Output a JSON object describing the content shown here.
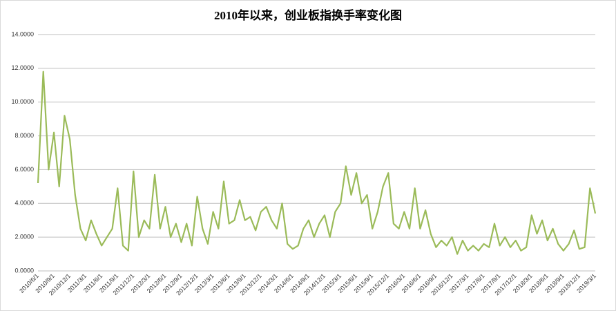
{
  "chart_data": {
    "type": "line",
    "title": "2010年以来，创业板指换手率变化图",
    "categories": [
      "2010/6/1",
      null,
      null,
      "2010/9/1",
      null,
      null,
      "2010/12/1",
      null,
      null,
      "2011/3/1",
      null,
      null,
      "2011/6/1",
      null,
      null,
      "2011/9/1",
      null,
      null,
      "2011/12/1",
      null,
      null,
      "2012/3/1",
      null,
      null,
      "2012/6/1",
      null,
      null,
      "2012/9/1",
      null,
      null,
      "2012/12/1",
      null,
      null,
      "2013/3/1",
      null,
      null,
      "2013/6/1",
      null,
      null,
      "2013/9/1",
      null,
      null,
      "2013/12/1",
      null,
      null,
      "2014/3/1",
      null,
      null,
      "2014/6/1",
      null,
      null,
      "2014/9/1",
      null,
      null,
      "2014/12/1",
      null,
      null,
      "2015/3/1",
      null,
      null,
      "2015/6/1",
      null,
      null,
      "2015/9/1",
      null,
      null,
      "2015/12/1",
      null,
      null,
      "2016/3/1",
      null,
      null,
      "2016/6/1",
      null,
      null,
      "2016/9/1",
      null,
      null,
      "2016/12/1",
      null,
      null,
      "2017/3/1",
      null,
      null,
      "2017/6/1",
      null,
      null,
      "2017/9/1",
      null,
      null,
      "2017/12/1",
      null,
      null,
      "2018/3/1",
      null,
      null,
      "2018/6/1",
      null,
      null,
      "2018/9/1",
      null,
      null,
      "2018/12/1",
      null,
      null,
      "2019/3/1"
    ],
    "series": [
      {
        "color": "#9bbb59",
        "values": [
          5.2,
          11.8,
          6.0,
          8.2,
          5.0,
          9.2,
          7.8,
          4.5,
          2.5,
          1.8,
          3.0,
          2.2,
          1.5,
          2.0,
          2.5,
          4.9,
          1.5,
          1.2,
          5.9,
          2.0,
          3.0,
          2.5,
          5.7,
          2.5,
          3.8,
          2.0,
          2.8,
          1.7,
          2.8,
          1.5,
          4.4,
          2.5,
          1.6,
          3.5,
          2.5,
          5.3,
          2.8,
          3.0,
          4.2,
          3.0,
          3.2,
          2.4,
          3.5,
          3.8,
          3.0,
          2.5,
          4.0,
          1.6,
          1.3,
          1.5,
          2.5,
          3.0,
          2.0,
          2.8,
          3.3,
          2.0,
          3.5,
          4.0,
          6.2,
          4.5,
          5.8,
          4.0,
          4.5,
          2.5,
          3.5,
          5.0,
          5.8,
          2.8,
          2.5,
          3.5,
          2.5,
          4.9,
          2.5,
          3.6,
          2.2,
          1.4,
          1.8,
          1.5,
          2.0,
          1.0,
          1.8,
          1.2,
          1.5,
          1.2,
          1.6,
          1.4,
          2.8,
          1.5,
          2.0,
          1.4,
          1.8,
          1.2,
          1.4,
          3.3,
          2.2,
          3.0,
          1.8,
          2.5,
          1.6,
          1.2,
          1.6,
          2.4,
          1.3,
          1.4,
          4.9,
          3.4
        ]
      }
    ],
    "ylim": [
      0,
      14
    ],
    "yticks": [
      {
        "value": 0,
        "label": "0.0000"
      },
      {
        "value": 2,
        "label": "2.0000"
      },
      {
        "value": 4,
        "label": "4.0000"
      },
      {
        "value": 6,
        "label": "6.0000"
      },
      {
        "value": 8,
        "label": "8.0000"
      },
      {
        "value": 10,
        "label": "10.0000"
      },
      {
        "value": 12,
        "label": "12.0000"
      },
      {
        "value": 14,
        "label": "14.0000"
      }
    ],
    "grid": true
  }
}
